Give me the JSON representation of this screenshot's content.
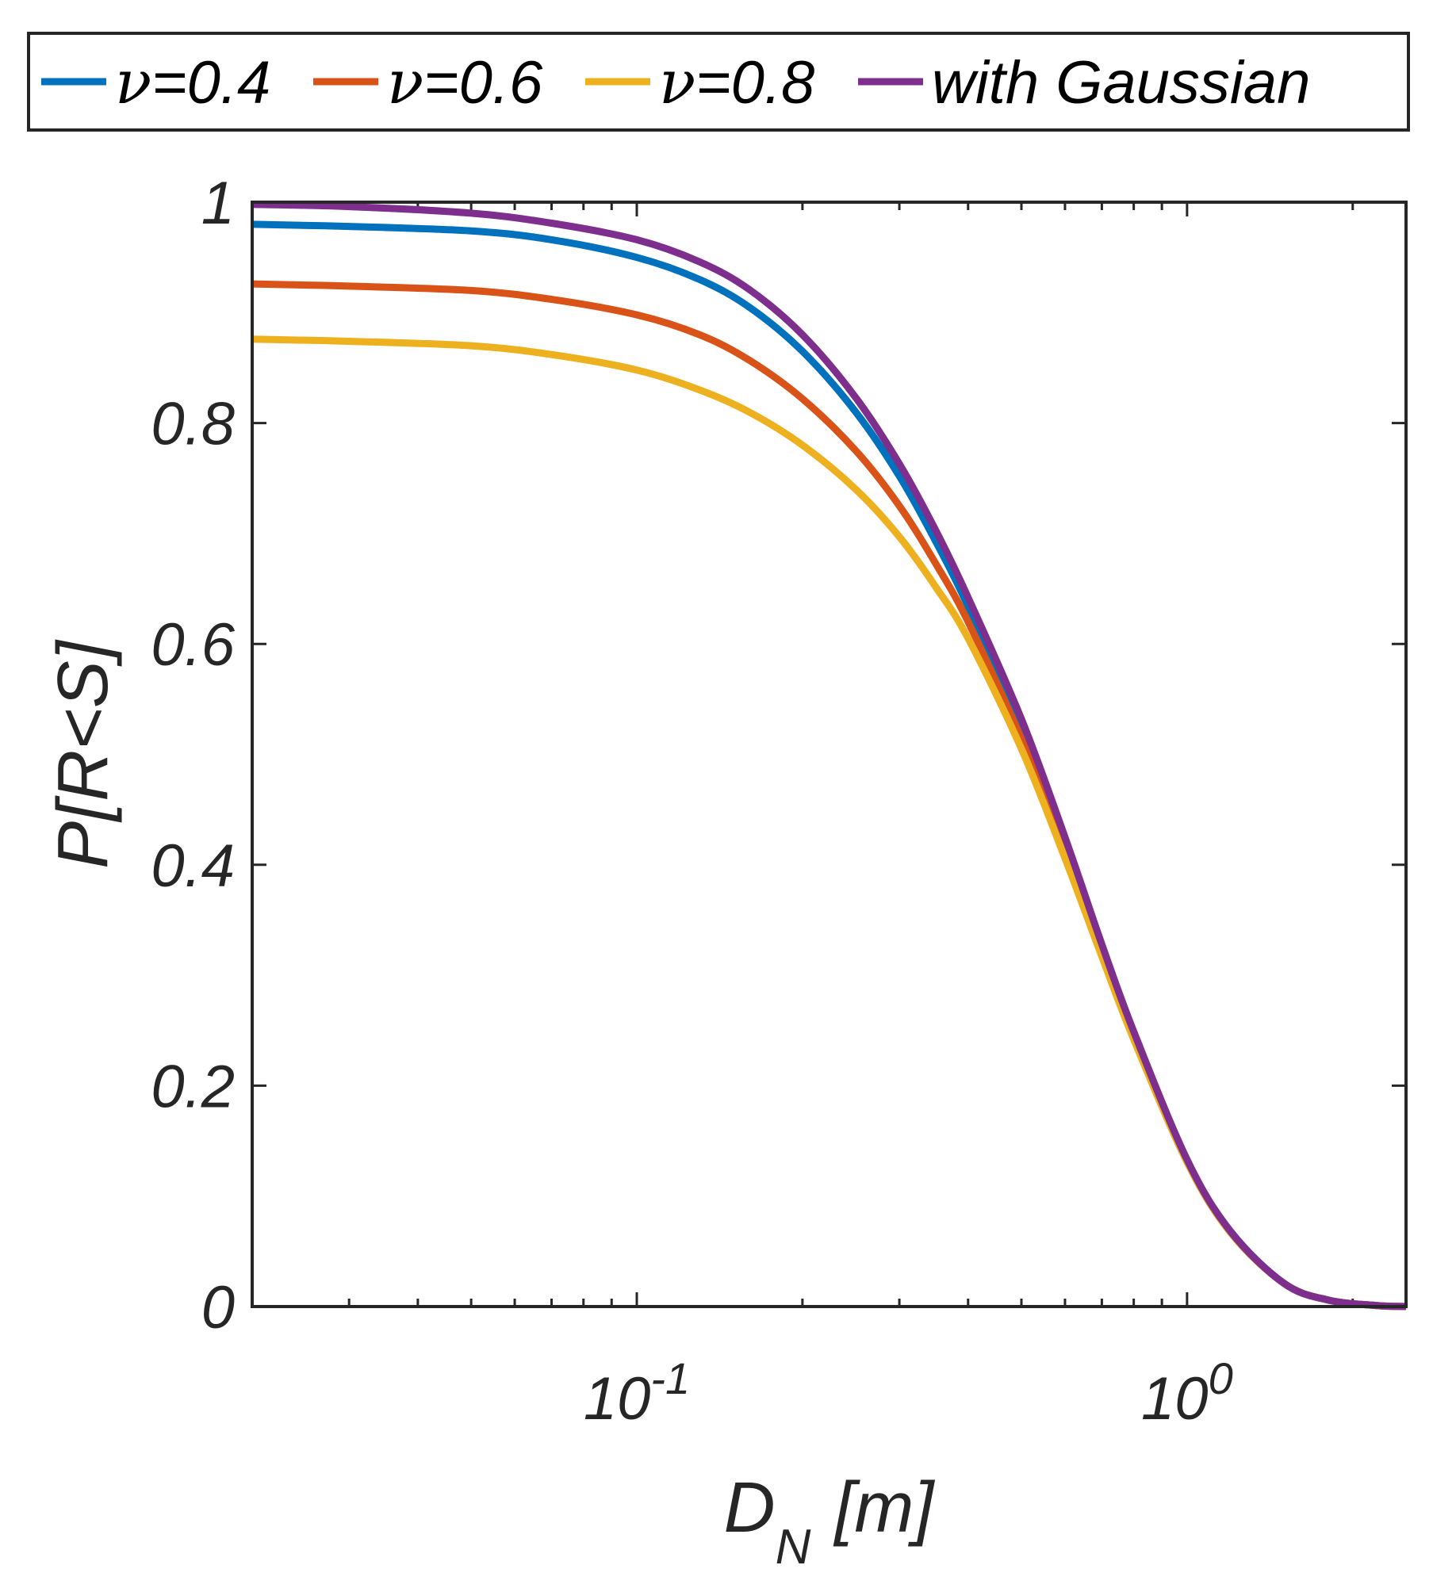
{
  "chart_data": {
    "type": "line",
    "title": "",
    "xlabel": "D",
    "xlabel_subscript": "N",
    "xlabel_unit": "[m]",
    "ylabel": "P[R<S]",
    "xscale": "log",
    "xlim": [
      0.02,
      2.5
    ],
    "ylim": [
      0,
      1
    ],
    "grid": false,
    "legend_position": "top, outside, horizontal",
    "x_ticks": [
      {
        "value": 0.1,
        "base": "10",
        "exp": "-1"
      },
      {
        "value": 1,
        "base": "10",
        "exp": "0"
      }
    ],
    "y_ticks": [
      {
        "value": 0,
        "label": "0"
      },
      {
        "value": 0.2,
        "label": "0.2"
      },
      {
        "value": 0.4,
        "label": "0.4"
      },
      {
        "value": 0.6,
        "label": "0.6"
      },
      {
        "value": 0.8,
        "label": "0.8"
      },
      {
        "value": 1,
        "label": "1"
      }
    ],
    "x": [
      0.02,
      0.03,
      0.05,
      0.07,
      0.1,
      0.13,
      0.16,
      0.2,
      0.25,
      0.3,
      0.35,
      0.4,
      0.5,
      0.6,
      0.7,
      0.8,
      1.0,
      1.2,
      1.5,
      1.8,
      2.2,
      2.5
    ],
    "series": [
      {
        "name": "ν=0.4",
        "legend_symbol": "ν",
        "legend_value": "=0.4",
        "color": "#0072BD",
        "values": [
          0.98,
          0.978,
          0.974,
          0.966,
          0.95,
          0.93,
          0.905,
          0.865,
          0.81,
          0.752,
          0.692,
          0.634,
          0.525,
          0.418,
          0.322,
          0.245,
          0.132,
          0.068,
          0.021,
          0.006,
          0.001,
          0.0
        ]
      },
      {
        "name": "ν=0.6",
        "legend_symbol": "ν",
        "legend_value": "=0.6",
        "color": "#D95319",
        "values": [
          0.926,
          0.924,
          0.92,
          0.912,
          0.898,
          0.88,
          0.857,
          0.822,
          0.775,
          0.725,
          0.672,
          0.62,
          0.514,
          0.412,
          0.32,
          0.243,
          0.131,
          0.067,
          0.021,
          0.006,
          0.001,
          0.0
        ]
      },
      {
        "name": "ν=0.8",
        "legend_symbol": "ν",
        "legend_value": "=0.8",
        "color": "#EDB120",
        "values": [
          0.876,
          0.874,
          0.87,
          0.862,
          0.848,
          0.83,
          0.81,
          0.78,
          0.74,
          0.697,
          0.651,
          0.605,
          0.505,
          0.406,
          0.317,
          0.242,
          0.131,
          0.067,
          0.021,
          0.006,
          0.001,
          0.0
        ]
      },
      {
        "name": "with Gaussian",
        "legend_symbol": "",
        "legend_value": "with Gaussian",
        "color": "#7E2F8E",
        "values": [
          0.998,
          0.996,
          0.99,
          0.981,
          0.966,
          0.946,
          0.921,
          0.88,
          0.823,
          0.763,
          0.702,
          0.642,
          0.532,
          0.425,
          0.328,
          0.249,
          0.133,
          0.068,
          0.021,
          0.006,
          0.001,
          0.0
        ]
      }
    ]
  }
}
